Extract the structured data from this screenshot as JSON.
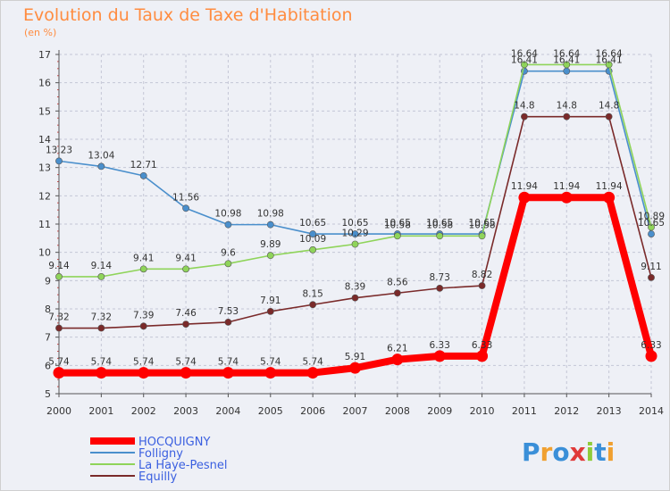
{
  "header": {
    "title": "Evolution du Taux de Taxe d'Habitation",
    "unit": "(en %)"
  },
  "logo": {
    "text": "Proxiti"
  },
  "chart_data": {
    "type": "line",
    "title": "Evolution du Taux de Taxe d'Habitation",
    "ylabel": "(en %)",
    "xlabel": "",
    "x": [
      "2000",
      "2001",
      "2002",
      "2003",
      "2004",
      "2005",
      "2006",
      "2007",
      "2008",
      "2009",
      "2010",
      "2011",
      "2012",
      "2013",
      "2014"
    ],
    "ylim": [
      5,
      17
    ],
    "yticks": [
      "5",
      "6",
      "7",
      "8",
      "9",
      "10",
      "11",
      "12",
      "13",
      "14",
      "15",
      "16",
      "17"
    ],
    "grid": true,
    "legend": "bottom-left",
    "series": [
      {
        "name": "HOCQUIGNY",
        "color": "#ff0000",
        "values": [
          5.74,
          5.74,
          5.74,
          5.74,
          5.74,
          5.74,
          5.74,
          5.91,
          6.21,
          6.33,
          6.33,
          11.94,
          11.94,
          11.94,
          6.33
        ],
        "labels": [
          "5.74",
          "5.74",
          "5.74",
          "5.74",
          "5.74",
          "5.74",
          "5.74",
          "5.91",
          "6.21",
          "6.33",
          "6.33",
          "11.94",
          "11.94",
          "11.94",
          "6.33"
        ]
      },
      {
        "name": "Folligny",
        "color": "#4a8fcc",
        "values": [
          13.23,
          13.04,
          12.71,
          11.56,
          10.98,
          10.98,
          10.65,
          10.65,
          10.65,
          10.65,
          10.65,
          16.41,
          16.41,
          16.41,
          10.65
        ],
        "labels": [
          "13.23",
          "13.04",
          "12.71",
          "11.56",
          "10.98",
          "10.98",
          "10.65",
          "10.65",
          "10.65",
          "10.65",
          "10.65",
          "16.41",
          "16.41",
          "16.41",
          "10.65"
        ]
      },
      {
        "name": "La Haye-Pesnel",
        "color": "#8fd45a",
        "values": [
          9.14,
          9.14,
          9.41,
          9.41,
          9.6,
          9.89,
          10.09,
          10.29,
          10.58,
          10.58,
          10.58,
          16.64,
          16.64,
          16.64,
          10.89
        ],
        "labels": [
          "9.14",
          "9.14",
          "9.41",
          "9.41",
          "9.6",
          "9.89",
          "10.09",
          "10.29",
          "10.58",
          "10.58",
          "10.58",
          "16.64",
          "16.64",
          "16.64",
          "10.89"
        ]
      },
      {
        "name": "Equilly",
        "color": "#7a2a2a",
        "values": [
          7.32,
          7.32,
          7.39,
          7.46,
          7.53,
          7.91,
          8.15,
          8.39,
          8.56,
          8.73,
          8.82,
          14.8,
          14.8,
          14.8,
          9.11
        ],
        "labels": [
          "7.32",
          "7.32",
          "7.39",
          "7.46",
          "7.53",
          "7.91",
          "8.15",
          "8.39",
          "8.56",
          "8.73",
          "8.82",
          "14.8",
          "14.8",
          "14.8",
          "9.11"
        ]
      }
    ]
  }
}
